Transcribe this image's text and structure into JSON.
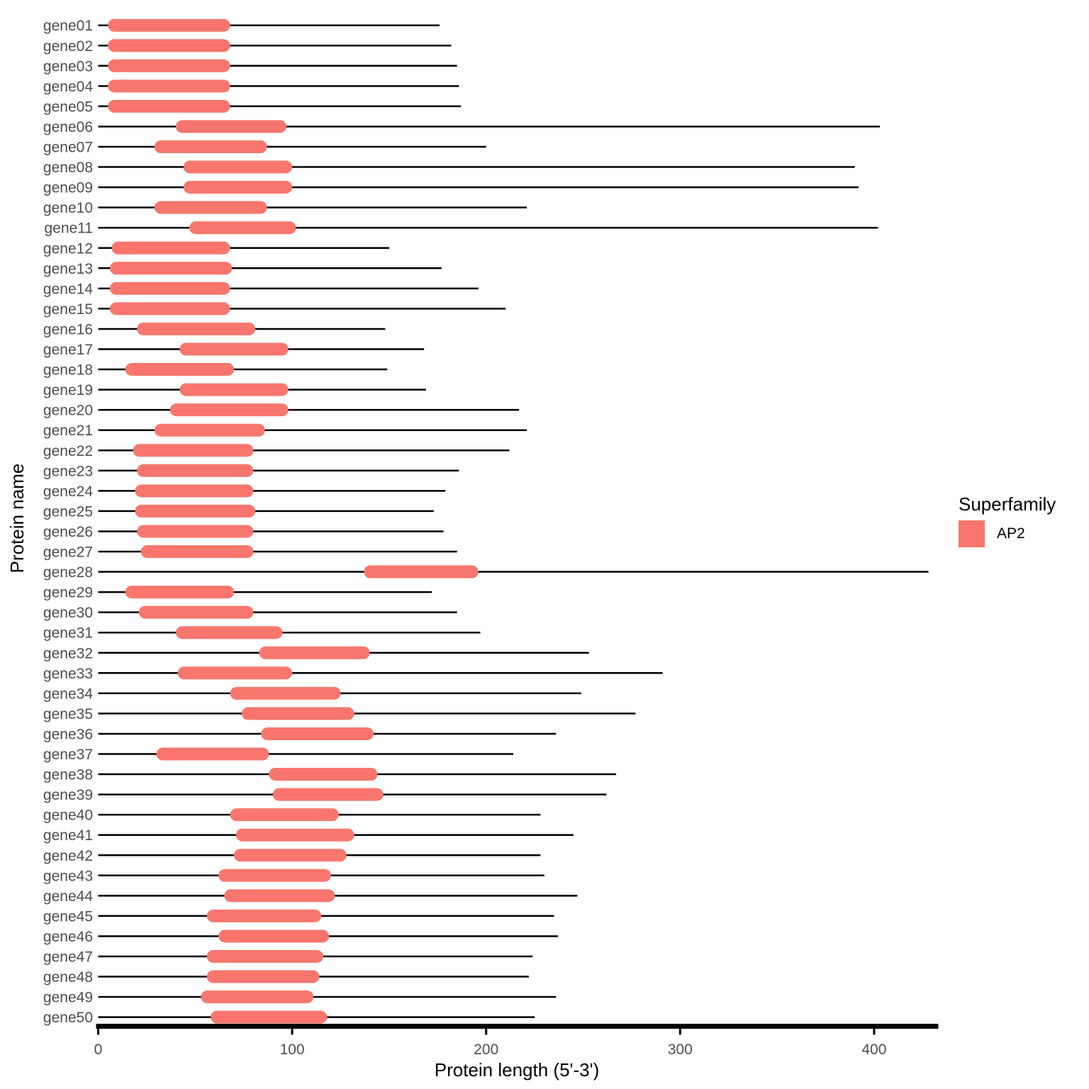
{
  "colors": {
    "domain_fill": "#F8766D",
    "chain_line": "#000000",
    "axis_line": "#000000",
    "tick_text": "#4D4D4D",
    "title_text": "#000000",
    "background": "#FFFFFF"
  },
  "chart_data": {
    "type": "bar",
    "subtype": "protein-domain-map",
    "title": "",
    "xlabel": "Protein length (5'-3')",
    "ylabel": "Protein name",
    "xlim": [
      0,
      432
    ],
    "x_ticks": [
      0,
      100,
      200,
      300,
      400
    ],
    "grid": false,
    "legend": {
      "title": "Superfamily",
      "position": "right",
      "entries": [
        {
          "label": "AP2",
          "color": "#F8766D"
        }
      ]
    },
    "genes": [
      {
        "name": "gene01",
        "protein_length": 176,
        "domain": "AP2",
        "domain_begin": 5,
        "domain_end": 68
      },
      {
        "name": "gene02",
        "protein_length": 182,
        "domain": "AP2",
        "domain_begin": 5,
        "domain_end": 68
      },
      {
        "name": "gene03",
        "protein_length": 185,
        "domain": "AP2",
        "domain_begin": 5,
        "domain_end": 68
      },
      {
        "name": "gene04",
        "protein_length": 186,
        "domain": "AP2",
        "domain_begin": 5,
        "domain_end": 68
      },
      {
        "name": "gene05",
        "protein_length": 187,
        "domain": "AP2",
        "domain_begin": 5,
        "domain_end": 68
      },
      {
        "name": "gene06",
        "protein_length": 403,
        "domain": "AP2",
        "domain_begin": 40,
        "domain_end": 97
      },
      {
        "name": "gene07",
        "protein_length": 200,
        "domain": "AP2",
        "domain_begin": 29,
        "domain_end": 87
      },
      {
        "name": "gene08",
        "protein_length": 390,
        "domain": "AP2",
        "domain_begin": 44,
        "domain_end": 100
      },
      {
        "name": "gene09",
        "protein_length": 392,
        "domain": "AP2",
        "domain_begin": 44,
        "domain_end": 100
      },
      {
        "name": "gene10",
        "protein_length": 221,
        "domain": "AP2",
        "domain_begin": 29,
        "domain_end": 87
      },
      {
        "name": "gene11",
        "protein_length": 402,
        "domain": "AP2",
        "domain_begin": 47,
        "domain_end": 102
      },
      {
        "name": "gene12",
        "protein_length": 150,
        "domain": "AP2",
        "domain_begin": 7,
        "domain_end": 68
      },
      {
        "name": "gene13",
        "protein_length": 177,
        "domain": "AP2",
        "domain_begin": 6,
        "domain_end": 69
      },
      {
        "name": "gene14",
        "protein_length": 196,
        "domain": "AP2",
        "domain_begin": 6,
        "domain_end": 68
      },
      {
        "name": "gene15",
        "protein_length": 210,
        "domain": "AP2",
        "domain_begin": 6,
        "domain_end": 68
      },
      {
        "name": "gene16",
        "protein_length": 148,
        "domain": "AP2",
        "domain_begin": 20,
        "domain_end": 81
      },
      {
        "name": "gene17",
        "protein_length": 168,
        "domain": "AP2",
        "domain_begin": 42,
        "domain_end": 98
      },
      {
        "name": "gene18",
        "protein_length": 149,
        "domain": "AP2",
        "domain_begin": 14,
        "domain_end": 70
      },
      {
        "name": "gene19",
        "protein_length": 169,
        "domain": "AP2",
        "domain_begin": 42,
        "domain_end": 98
      },
      {
        "name": "gene20",
        "protein_length": 217,
        "domain": "AP2",
        "domain_begin": 37,
        "domain_end": 98
      },
      {
        "name": "gene21",
        "protein_length": 221,
        "domain": "AP2",
        "domain_begin": 29,
        "domain_end": 86
      },
      {
        "name": "gene22",
        "protein_length": 212,
        "domain": "AP2",
        "domain_begin": 18,
        "domain_end": 80
      },
      {
        "name": "gene23",
        "protein_length": 186,
        "domain": "AP2",
        "domain_begin": 20,
        "domain_end": 80
      },
      {
        "name": "gene24",
        "protein_length": 179,
        "domain": "AP2",
        "domain_begin": 19,
        "domain_end": 80
      },
      {
        "name": "gene25",
        "protein_length": 173,
        "domain": "AP2",
        "domain_begin": 19,
        "domain_end": 81
      },
      {
        "name": "gene26",
        "protein_length": 178,
        "domain": "AP2",
        "domain_begin": 20,
        "domain_end": 80
      },
      {
        "name": "gene27",
        "protein_length": 185,
        "domain": "AP2",
        "domain_begin": 22,
        "domain_end": 80
      },
      {
        "name": "gene28",
        "protein_length": 428,
        "domain": "AP2",
        "domain_begin": 137,
        "domain_end": 196
      },
      {
        "name": "gene29",
        "protein_length": 172,
        "domain": "AP2",
        "domain_begin": 14,
        "domain_end": 70
      },
      {
        "name": "gene30",
        "protein_length": 185,
        "domain": "AP2",
        "domain_begin": 21,
        "domain_end": 80
      },
      {
        "name": "gene31",
        "protein_length": 197,
        "domain": "AP2",
        "domain_begin": 40,
        "domain_end": 95
      },
      {
        "name": "gene32",
        "protein_length": 253,
        "domain": "AP2",
        "domain_begin": 83,
        "domain_end": 140
      },
      {
        "name": "gene33",
        "protein_length": 291,
        "domain": "AP2",
        "domain_begin": 41,
        "domain_end": 100
      },
      {
        "name": "gene34",
        "protein_length": 249,
        "domain": "AP2",
        "domain_begin": 68,
        "domain_end": 125
      },
      {
        "name": "gene35",
        "protein_length": 277,
        "domain": "AP2",
        "domain_begin": 74,
        "domain_end": 132
      },
      {
        "name": "gene36",
        "protein_length": 236,
        "domain": "AP2",
        "domain_begin": 84,
        "domain_end": 142
      },
      {
        "name": "gene37",
        "protein_length": 214,
        "domain": "AP2",
        "domain_begin": 30,
        "domain_end": 88
      },
      {
        "name": "gene38",
        "protein_length": 267,
        "domain": "AP2",
        "domain_begin": 88,
        "domain_end": 144
      },
      {
        "name": "gene39",
        "protein_length": 262,
        "domain": "AP2",
        "domain_begin": 90,
        "domain_end": 147
      },
      {
        "name": "gene40",
        "protein_length": 228,
        "domain": "AP2",
        "domain_begin": 68,
        "domain_end": 124
      },
      {
        "name": "gene41",
        "protein_length": 245,
        "domain": "AP2",
        "domain_begin": 71,
        "domain_end": 132
      },
      {
        "name": "gene42",
        "protein_length": 228,
        "domain": "AP2",
        "domain_begin": 70,
        "domain_end": 128
      },
      {
        "name": "gene43",
        "protein_length": 230,
        "domain": "AP2",
        "domain_begin": 62,
        "domain_end": 120
      },
      {
        "name": "gene44",
        "protein_length": 247,
        "domain": "AP2",
        "domain_begin": 65,
        "domain_end": 122
      },
      {
        "name": "gene45",
        "protein_length": 235,
        "domain": "AP2",
        "domain_begin": 56,
        "domain_end": 115
      },
      {
        "name": "gene46",
        "protein_length": 237,
        "domain": "AP2",
        "domain_begin": 62,
        "domain_end": 119
      },
      {
        "name": "gene47",
        "protein_length": 224,
        "domain": "AP2",
        "domain_begin": 56,
        "domain_end": 116
      },
      {
        "name": "gene48",
        "protein_length": 222,
        "domain": "AP2",
        "domain_begin": 56,
        "domain_end": 114
      },
      {
        "name": "gene49",
        "protein_length": 236,
        "domain": "AP2",
        "domain_begin": 53,
        "domain_end": 111
      },
      {
        "name": "gene50",
        "protein_length": 225,
        "domain": "AP2",
        "domain_begin": 58,
        "domain_end": 118
      }
    ]
  }
}
